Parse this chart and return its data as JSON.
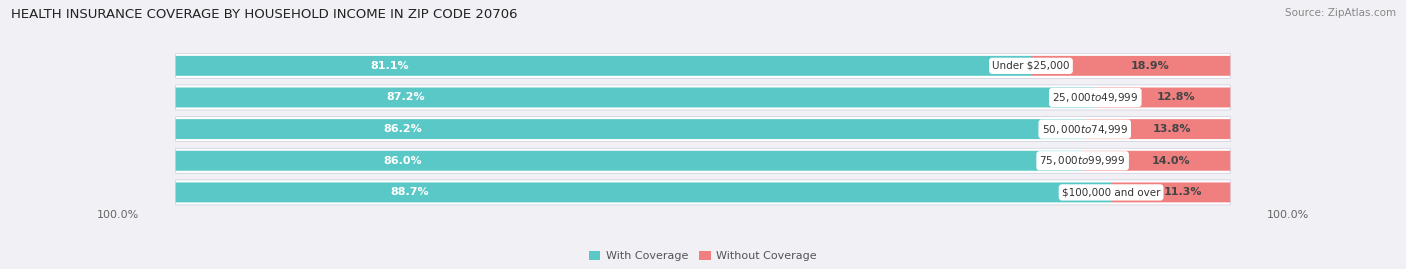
{
  "title": "HEALTH INSURANCE COVERAGE BY HOUSEHOLD INCOME IN ZIP CODE 20706",
  "source": "Source: ZipAtlas.com",
  "categories": [
    "Under $25,000",
    "$25,000 to $49,999",
    "$50,000 to $74,999",
    "$75,000 to $99,999",
    "$100,000 and over"
  ],
  "with_coverage": [
    81.1,
    87.2,
    86.2,
    86.0,
    88.7
  ],
  "without_coverage": [
    18.9,
    12.8,
    13.8,
    14.0,
    11.3
  ],
  "color_with": "#5BC8C8",
  "color_without": "#F08080",
  "bg_color": "#f0f0f5",
  "bar_bg_color": "#e8e8ee",
  "bar_bg_inner": "#ffffff",
  "title_fontsize": 9.5,
  "label_fontsize": 8,
  "tick_fontsize": 8,
  "legend_fontsize": 8,
  "source_fontsize": 7.5
}
